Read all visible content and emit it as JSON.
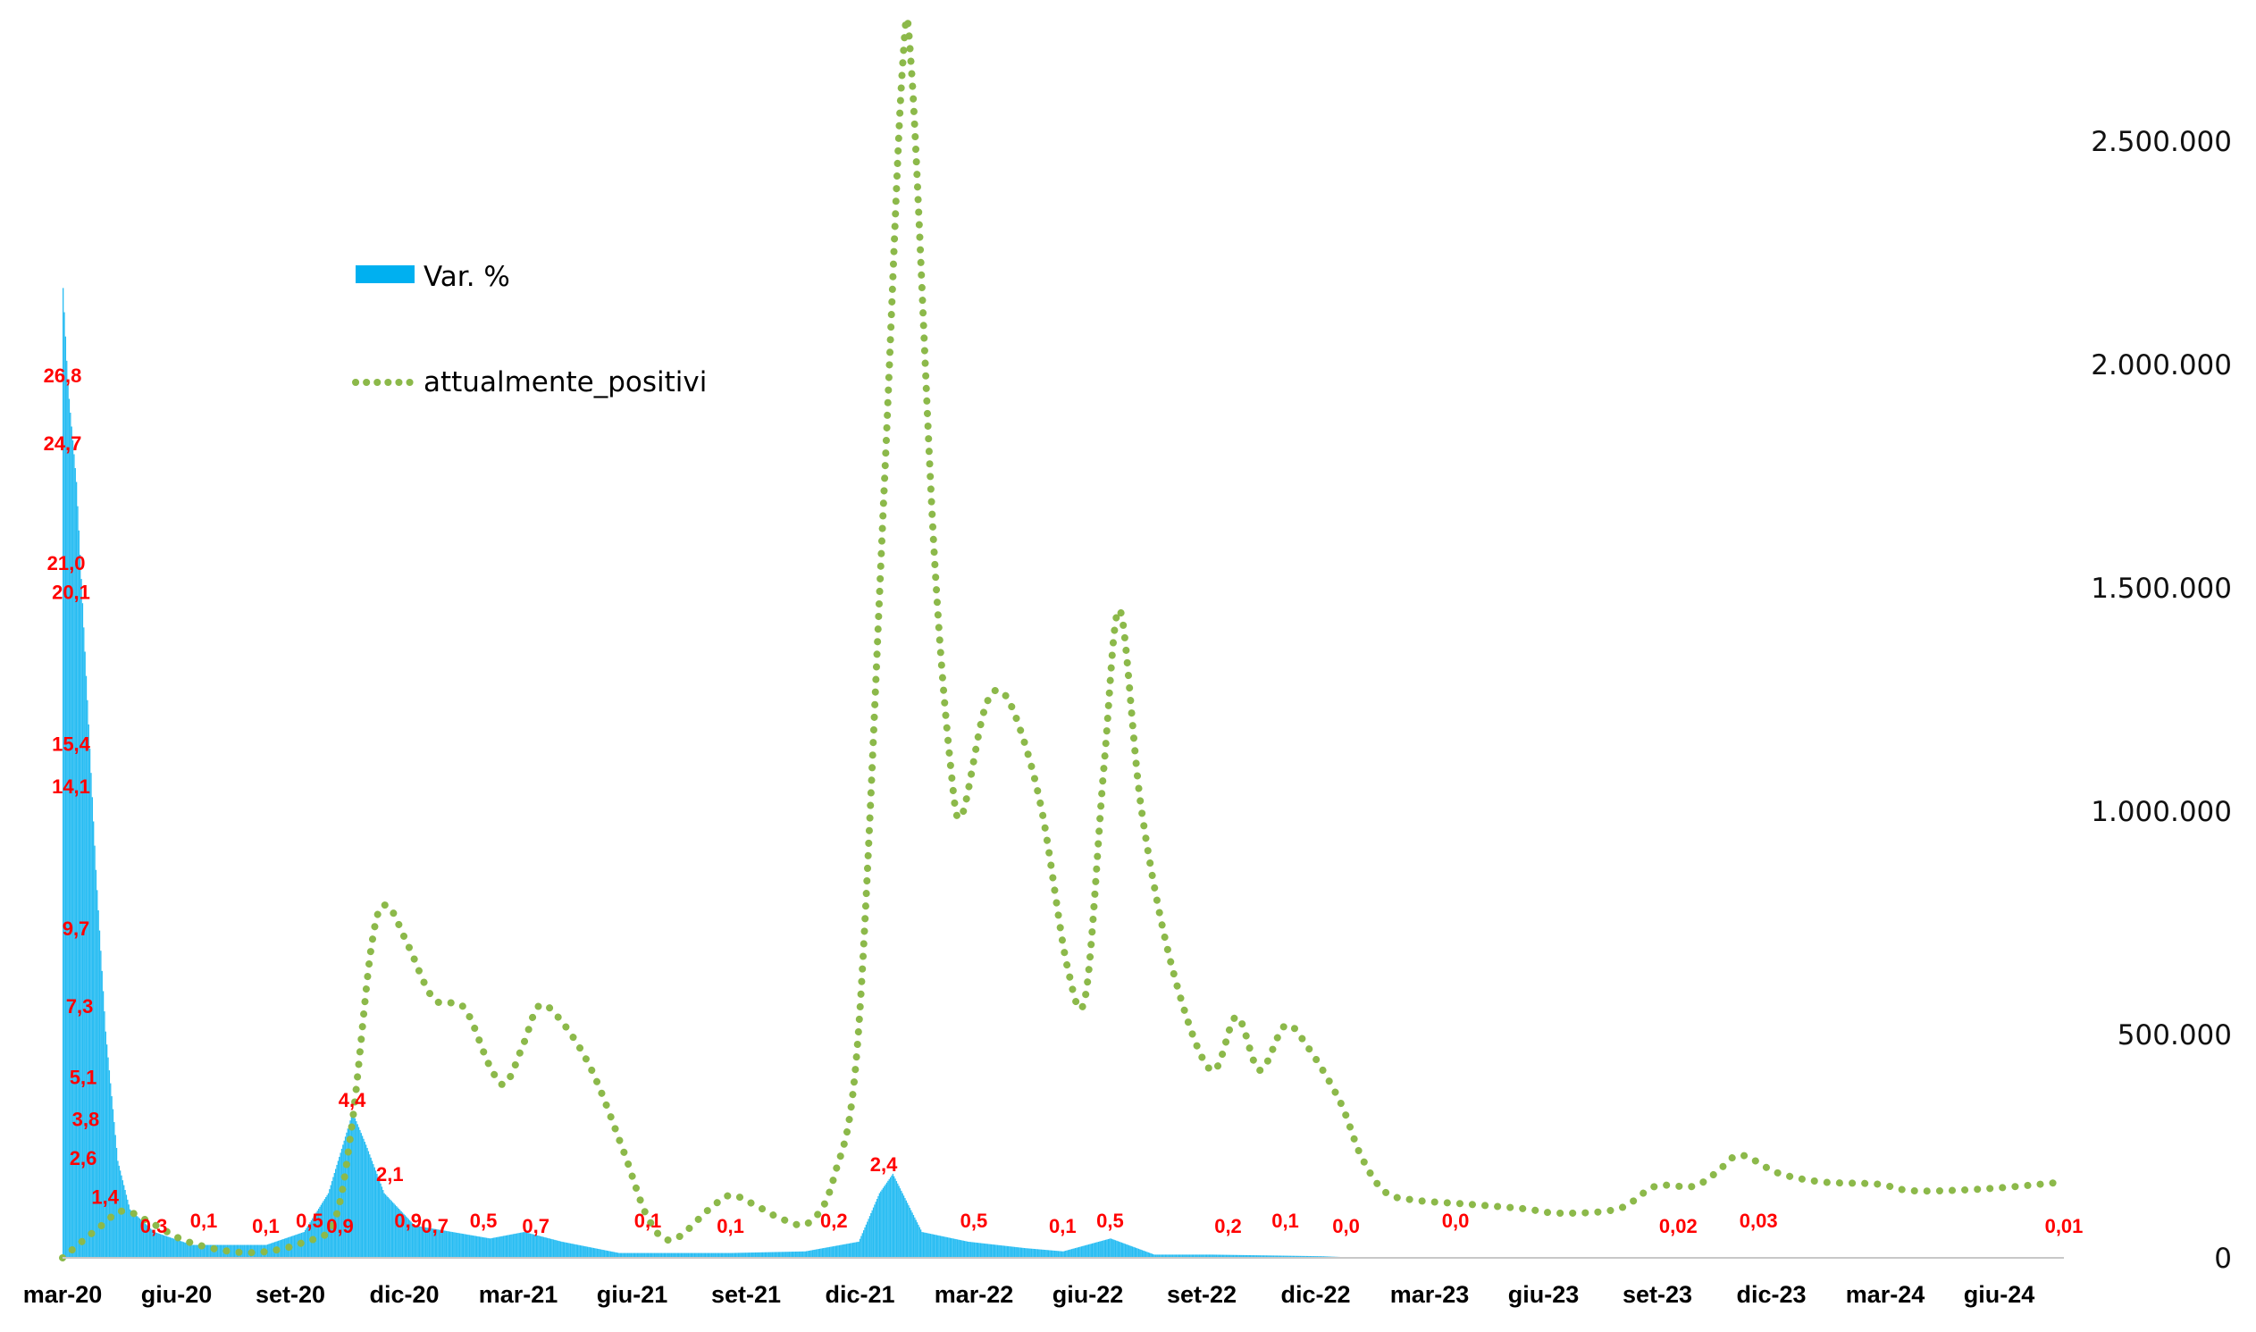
{
  "chart_data": {
    "type": "bar+line",
    "title": "",
    "legend": {
      "placement": "inside-top-left",
      "entries": [
        {
          "name": "Var. %",
          "style": "bar",
          "color": "#00b0f0"
        },
        {
          "name": "attualmente_positivi",
          "style": "dotted-line",
          "color": "#8cb94a"
        }
      ]
    },
    "x_ticks": [
      "mar-20",
      "giu-20",
      "set-20",
      "dic-20",
      "mar-21",
      "giu-21",
      "set-21",
      "dic-21",
      "mar-22",
      "giu-22",
      "set-22",
      "dic-22",
      "mar-23",
      "giu-23",
      "set-23",
      "dic-23",
      "mar-24",
      "giu-24"
    ],
    "x_range": [
      "2020-03",
      "2024-09"
    ],
    "y_right": {
      "min": 0,
      "max": 2700000,
      "ticks": [
        0,
        500000,
        1000000,
        1500000,
        2000000,
        2500000
      ],
      "tick_labels": [
        "0",
        "500.000",
        "1.000.000",
        "1.500.000",
        "2.000.000",
        "2.500.000"
      ]
    },
    "y_left_hidden": {
      "min": 0,
      "max": 32
    },
    "series": [
      {
        "name": "attualmente_positivi",
        "axis": "right",
        "points": [
          [
            "2020-03-01",
            0
          ],
          [
            "2020-04-01",
            70000
          ],
          [
            "2020-04-20",
            105000
          ],
          [
            "2020-05-15",
            75000
          ],
          [
            "2020-06-10",
            38000
          ],
          [
            "2020-07-15",
            15000
          ],
          [
            "2020-08-15",
            14000
          ],
          [
            "2020-09-15",
            35000
          ],
          [
            "2020-10-10",
            80000
          ],
          [
            "2020-10-25",
            300000
          ],
          [
            "2020-11-10",
            700000
          ],
          [
            "2020-11-22",
            790000
          ],
          [
            "2020-12-10",
            700000
          ],
          [
            "2020-12-31",
            580000
          ],
          [
            "2021-01-25",
            560000
          ],
          [
            "2021-02-15",
            430000
          ],
          [
            "2021-02-28",
            390000
          ],
          [
            "2021-03-15",
            480000
          ],
          [
            "2021-03-28",
            565000
          ],
          [
            "2021-04-15",
            530000
          ],
          [
            "2021-05-10",
            420000
          ],
          [
            "2021-06-05",
            240000
          ],
          [
            "2021-06-25",
            90000
          ],
          [
            "2021-07-15",
            40000
          ],
          [
            "2021-08-15",
            110000
          ],
          [
            "2021-09-01",
            140000
          ],
          [
            "2021-09-20",
            120000
          ],
          [
            "2021-10-15",
            85000
          ],
          [
            "2021-11-05",
            80000
          ],
          [
            "2021-11-25",
            180000
          ],
          [
            "2021-12-15",
            500000
          ],
          [
            "2022-01-05",
            1700000
          ],
          [
            "2022-01-20",
            2650000
          ],
          [
            "2022-01-28",
            2650000
          ],
          [
            "2022-02-15",
            1600000
          ],
          [
            "2022-03-01",
            1100000
          ],
          [
            "2022-03-10",
            990000
          ],
          [
            "2022-03-28",
            1220000
          ],
          [
            "2022-04-10",
            1270000
          ],
          [
            "2022-04-25",
            1200000
          ],
          [
            "2022-05-15",
            1000000
          ],
          [
            "2022-06-05",
            650000
          ],
          [
            "2022-06-20",
            590000
          ],
          [
            "2022-07-05",
            1100000
          ],
          [
            "2022-07-18",
            1450000
          ],
          [
            "2022-08-05",
            1000000
          ],
          [
            "2022-08-31",
            640000
          ],
          [
            "2022-10-01",
            420000
          ],
          [
            "2022-10-22",
            540000
          ],
          [
            "2022-11-10",
            420000
          ],
          [
            "2022-12-01",
            520000
          ],
          [
            "2022-12-20",
            470000
          ],
          [
            "2023-01-15",
            350000
          ],
          [
            "2023-02-01",
            230000
          ],
          [
            "2023-02-20",
            150000
          ],
          [
            "2023-03-15",
            130000
          ],
          [
            "2023-05-01",
            120000
          ],
          [
            "2023-06-15",
            110000
          ],
          [
            "2023-07-15",
            100000
          ],
          [
            "2023-09-01",
            110000
          ],
          [
            "2023-10-01",
            160000
          ],
          [
            "2023-11-01",
            160000
          ],
          [
            "2023-11-20",
            190000
          ],
          [
            "2023-12-10",
            230000
          ],
          [
            "2024-01-10",
            190000
          ],
          [
            "2024-02-15",
            170000
          ],
          [
            "2024-04-01",
            165000
          ],
          [
            "2024-05-01",
            150000
          ],
          [
            "2024-07-01",
            155000
          ],
          [
            "2024-09-01",
            170000
          ]
        ]
      },
      {
        "name": "Var. %",
        "axis": "left-hidden",
        "bar_envelope": [
          [
            "2020-03-01",
            30
          ],
          [
            "2020-03-05",
            27
          ],
          [
            "2020-03-12",
            24
          ],
          [
            "2020-03-20",
            18
          ],
          [
            "2020-03-28",
            12
          ],
          [
            "2020-04-05",
            7
          ],
          [
            "2020-04-15",
            3
          ],
          [
            "2020-04-25",
            1.5
          ],
          [
            "2020-05-15",
            0.8
          ],
          [
            "2020-06-15",
            0.4
          ],
          [
            "2020-08-15",
            0.4
          ],
          [
            "2020-09-15",
            0.8
          ],
          [
            "2020-10-05",
            2
          ],
          [
            "2020-10-25",
            4.5
          ],
          [
            "2020-11-05",
            3.5
          ],
          [
            "2020-11-20",
            2
          ],
          [
            "2020-12-15",
            1
          ],
          [
            "2021-01-15",
            0.8
          ],
          [
            "2021-02-15",
            0.6
          ],
          [
            "2021-03-15",
            0.8
          ],
          [
            "2021-04-15",
            0.5
          ],
          [
            "2021-06-01",
            0.15
          ],
          [
            "2021-09-01",
            0.15
          ],
          [
            "2021-11-01",
            0.2
          ],
          [
            "2021-12-15",
            0.5
          ],
          [
            "2022-01-01",
            2
          ],
          [
            "2022-01-12",
            2.6
          ],
          [
            "2022-02-05",
            0.8
          ],
          [
            "2022-03-15",
            0.5
          ],
          [
            "2022-05-01",
            0.3
          ],
          [
            "2022-06-01",
            0.2
          ],
          [
            "2022-07-10",
            0.6
          ],
          [
            "2022-08-15",
            0.1
          ],
          [
            "2022-10-01",
            0.1
          ],
          [
            "2022-12-31",
            0.05
          ],
          [
            "2023-01-20",
            0.02
          ],
          [
            "2024-09-01",
            0.01
          ]
        ],
        "data_labels": [
          [
            "2020-03-01",
            "26,8",
            26.8
          ],
          [
            "2020-03-01",
            "24,7",
            24.7
          ],
          [
            "2020-03-04",
            "21,0",
            21.0
          ],
          [
            "2020-03-08",
            "20,1",
            20.1
          ],
          [
            "2020-03-08",
            "15,4",
            15.4
          ],
          [
            "2020-03-08",
            "14,1",
            14.1
          ],
          [
            "2020-03-12",
            "9,7",
            9.7
          ],
          [
            "2020-03-15",
            "7,3",
            7.3
          ],
          [
            "2020-03-18",
            "5,1",
            5.1
          ],
          [
            "2020-03-20",
            "3,8",
            3.8
          ],
          [
            "2020-03-18",
            "2,6",
            2.6
          ],
          [
            "2020-04-05",
            "1,4",
            1.4
          ],
          [
            "2020-05-15",
            "0,3",
            0.3
          ],
          [
            "2020-06-25",
            "0,1",
            0.1
          ],
          [
            "2020-08-15",
            "0,1",
            0.1
          ],
          [
            "2020-09-20",
            "0,5",
            0.5
          ],
          [
            "2020-10-15",
            "0,9",
            0.9
          ],
          [
            "2020-10-25",
            "4,4",
            4.4
          ],
          [
            "2020-11-25",
            "2,1",
            2.1
          ],
          [
            "2020-12-10",
            "0,9",
            0.9
          ],
          [
            "2021-01-01",
            "0,7",
            0.7
          ],
          [
            "2021-02-10",
            "0,5",
            0.5
          ],
          [
            "2021-03-25",
            "0,7",
            0.7
          ],
          [
            "2021-06-25",
            "0,1",
            0.1
          ],
          [
            "2021-09-01",
            "0,1",
            0.1
          ],
          [
            "2021-11-25",
            "0,2",
            0.2
          ],
          [
            "2022-01-05",
            "2,4",
            2.4
          ],
          [
            "2022-03-20",
            "0,5",
            0.5
          ],
          [
            "2022-06-01",
            "0,1",
            0.1
          ],
          [
            "2022-07-10",
            "0,5",
            0.5
          ],
          [
            "2022-10-15",
            "0,2",
            0.2
          ],
          [
            "2022-12-01",
            "0,1",
            0.1
          ],
          [
            "2023-01-20",
            "0,0",
            0.0
          ],
          [
            "2023-04-20",
            "0,0",
            0.0
          ],
          [
            "2023-10-20",
            "0,02",
            0.02
          ],
          [
            "2023-12-25",
            "0,03",
            0.03
          ],
          [
            "2024-09-01",
            "0,01",
            0.01
          ]
        ]
      }
    ],
    "grid": false
  }
}
